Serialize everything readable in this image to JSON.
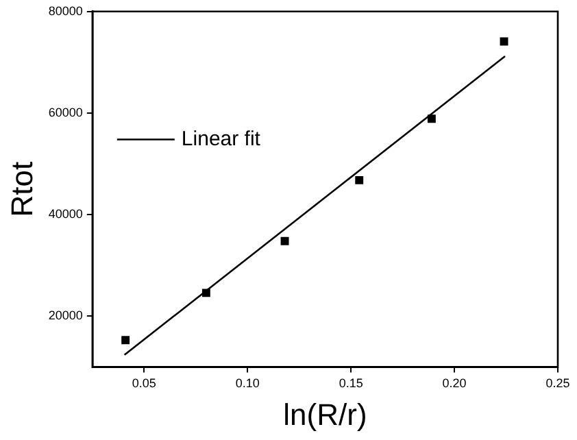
{
  "chart_data": {
    "type": "scatter",
    "xlabel": "ln(R/r)",
    "ylabel": "Rtot",
    "xlim": [
      0.025,
      0.25
    ],
    "xticks": [
      {
        "value": 0.05,
        "label": "0.05"
      },
      {
        "value": 0.1,
        "label": "0.10"
      },
      {
        "value": 0.15,
        "label": "0.15"
      },
      {
        "value": 0.2,
        "label": "0.20"
      },
      {
        "value": 0.25,
        "label": "0.25"
      }
    ],
    "ylim": [
      10000,
      80000
    ],
    "yticks": [
      20000,
      40000,
      60000,
      80000
    ],
    "grid": false,
    "legend": "left",
    "marker": "square",
    "series": [
      {
        "color": "#000000",
        "x": [
          0.041,
          0.08,
          0.118,
          0.154,
          0.189,
          0.224
        ],
        "values": [
          15300,
          24600,
          34800,
          46800,
          58900,
          74100
        ]
      },
      {
        "type": "line",
        "name": "Linear fit",
        "color": "#000000",
        "line_style": "solid",
        "marker": "none",
        "x": [
          0.0405,
          0.2245
        ],
        "values": [
          12400,
          71200
        ]
      }
    ]
  }
}
